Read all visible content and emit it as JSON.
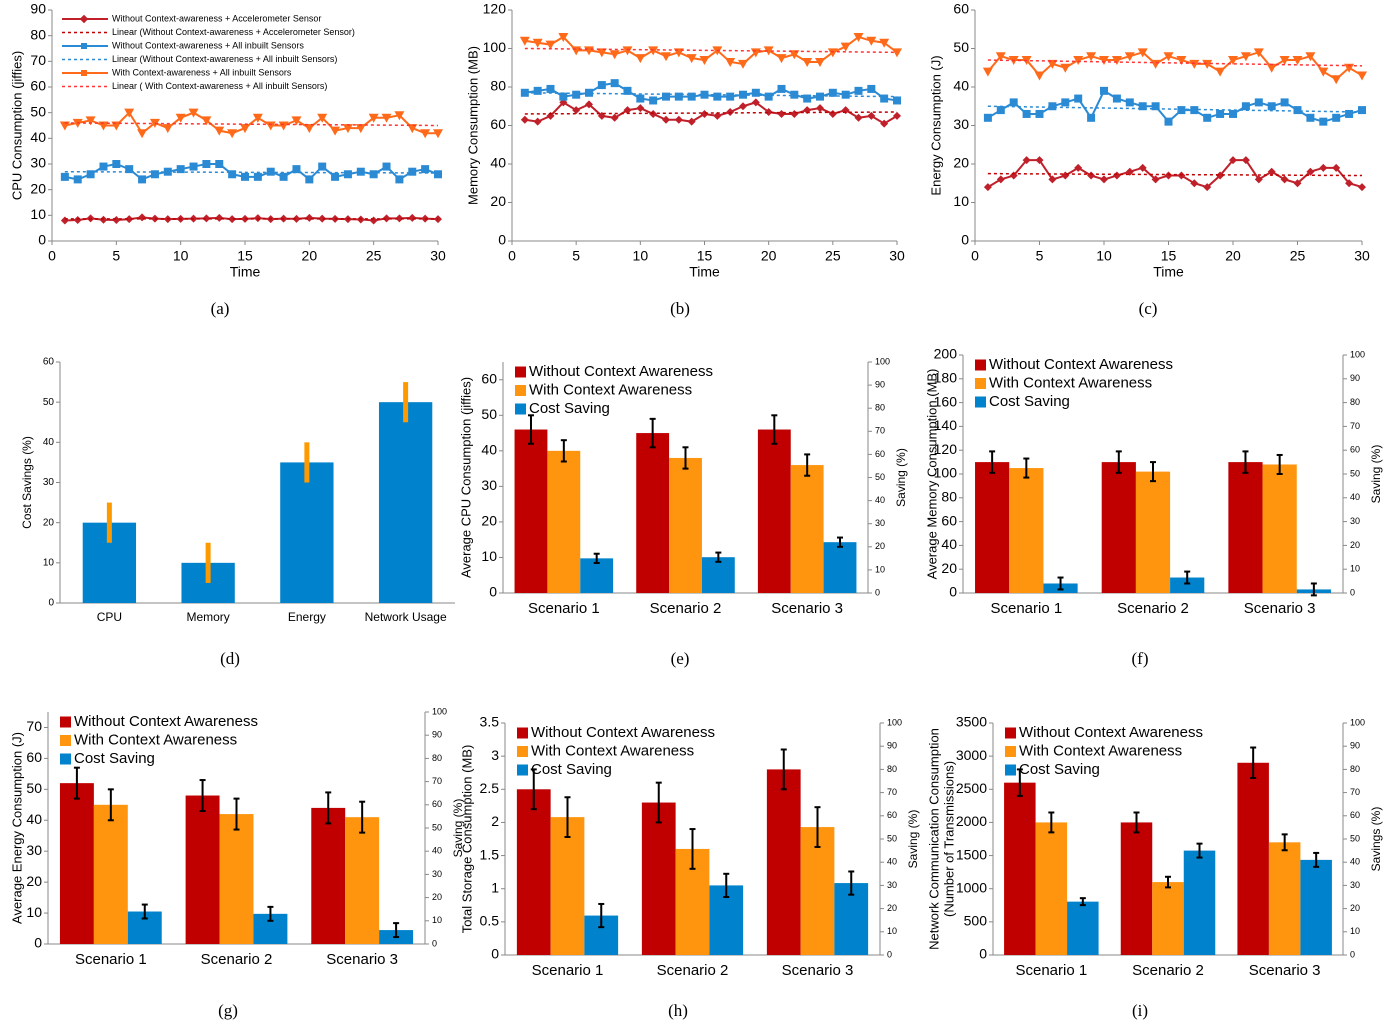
{
  "chart_data": [
    {
      "type": "line",
      "caption": "(a)",
      "ylabel": "CPU Consumption (jiffies)",
      "xlabel": "Time",
      "legend": true,
      "x": [
        1,
        2,
        3,
        4,
        5,
        6,
        7,
        8,
        9,
        10,
        11,
        12,
        13,
        14,
        15,
        16,
        17,
        18,
        19,
        20,
        21,
        22,
        23,
        24,
        25,
        26,
        27,
        28,
        29,
        30
      ],
      "xlim": [
        0,
        30
      ],
      "xticks": [
        0,
        5,
        10,
        15,
        20,
        25,
        30
      ],
      "ylim": [
        0,
        90
      ],
      "yticks": [
        0,
        10,
        20,
        30,
        40,
        50,
        60,
        70,
        80,
        90
      ],
      "series": [
        {
          "name": "Without Context-awareness + Accelerometer Sensor",
          "color": "#c0202a",
          "marker": "diamond",
          "values": [
            8,
            8.2,
            8.8,
            8.3,
            8.2,
            8.5,
            9.2,
            8.7,
            8.5,
            8.6,
            8.7,
            8.8,
            9,
            8.5,
            8.6,
            8.9,
            8.5,
            8.7,
            8.6,
            9,
            8.7,
            8.6,
            8.5,
            8.4,
            8,
            8.8,
            8.8,
            9,
            8.7,
            8.5
          ]
        },
        {
          "name": "Linear (Without Context-awareness + Accelerometer Sensor)",
          "color": "#c00000",
          "dash": true,
          "x": [
            1,
            30
          ],
          "values": [
            8.6,
            8.6
          ]
        },
        {
          "name": "Without Context-awareness + All inbuilt Sensors",
          "color": "#2a8ad4",
          "marker": "square",
          "values": [
            25,
            24,
            26,
            29,
            30,
            28,
            24,
            26,
            27,
            28,
            29,
            30,
            30,
            26,
            25,
            25,
            27,
            25,
            28,
            24,
            29,
            25,
            26,
            27,
            26,
            29,
            24,
            27,
            28,
            26
          ]
        },
        {
          "name": "Linear (Without Context-awareness + All inbuilt Sensors)",
          "color": "#2a8ad4",
          "dash": true,
          "x": [
            1,
            30
          ],
          "values": [
            27,
            26.5
          ]
        },
        {
          "name": " With Context-awareness + All inbuilt Sensors",
          "color": "#ff6a1a",
          "marker": "triangle",
          "values": [
            45,
            46,
            47,
            45,
            45,
            50,
            42,
            46,
            44,
            48,
            50,
            47,
            43,
            42,
            44,
            48,
            45,
            45,
            47,
            44,
            48,
            43,
            44,
            44,
            48,
            48,
            49,
            44,
            42,
            42
          ]
        },
        {
          "name": "Linear ( With Context-awareness + All inbuilt Sensors)",
          "color": "#ff3333",
          "dash": true,
          "x": [
            1,
            30
          ],
          "values": [
            46,
            45
          ]
        }
      ]
    },
    {
      "type": "line",
      "caption": "(b)",
      "ylabel": "Memory Consumption (MB)",
      "xlabel": "Time",
      "x": [
        1,
        2,
        3,
        4,
        5,
        6,
        7,
        8,
        9,
        10,
        11,
        12,
        13,
        14,
        15,
        16,
        17,
        18,
        19,
        20,
        21,
        22,
        23,
        24,
        25,
        26,
        27,
        28,
        29,
        30
      ],
      "xlim": [
        0,
        30
      ],
      "xticks": [
        0,
        5,
        10,
        15,
        20,
        25,
        30
      ],
      "ylim": [
        0,
        120
      ],
      "yticks": [
        0,
        20,
        40,
        60,
        80,
        100,
        120
      ],
      "series": [
        {
          "color": "#c0202a",
          "marker": "diamond",
          "values": [
            63,
            62,
            65,
            72,
            68,
            71,
            65,
            64,
            68,
            69,
            66,
            63,
            63,
            62,
            66,
            65,
            67,
            70,
            72,
            67,
            66,
            66,
            68,
            69,
            66,
            68,
            64,
            65,
            61,
            65
          ]
        },
        {
          "color": "#c00000",
          "dash": true,
          "x": [
            1,
            30
          ],
          "values": [
            66,
            67
          ]
        },
        {
          "color": "#2a8ad4",
          "marker": "square",
          "values": [
            77,
            78,
            79,
            75,
            76,
            77,
            81,
            82,
            78,
            74,
            73,
            75,
            75,
            75,
            76,
            75,
            75,
            76,
            77,
            75,
            79,
            76,
            74,
            75,
            77,
            76,
            78,
            79,
            74,
            73
          ]
        },
        {
          "color": "#2a8ad4",
          "dash": true,
          "x": [
            1,
            30
          ],
          "values": [
            77,
            75
          ]
        },
        {
          "color": "#ff6a1a",
          "marker": "triangle",
          "values": [
            104,
            103,
            102,
            106,
            99,
            99,
            98,
            97,
            99,
            95,
            99,
            96,
            98,
            95,
            94,
            99,
            93,
            92,
            98,
            99,
            95,
            97,
            93,
            93,
            98,
            101,
            106,
            104,
            103,
            98
          ]
        },
        {
          "color": "#ff3333",
          "dash": true,
          "x": [
            1,
            30
          ],
          "values": [
            100,
            98
          ]
        }
      ]
    },
    {
      "type": "line",
      "caption": "(c)",
      "ylabel": "Energy Consumption (J)",
      "xlabel": "Time",
      "x": [
        1,
        2,
        3,
        4,
        5,
        6,
        7,
        8,
        9,
        10,
        11,
        12,
        13,
        14,
        15,
        16,
        17,
        18,
        19,
        20,
        21,
        22,
        23,
        24,
        25,
        26,
        27,
        28,
        29,
        30
      ],
      "xlim": [
        0,
        30
      ],
      "xticks": [
        0,
        5,
        10,
        15,
        20,
        25,
        30
      ],
      "ylim": [
        0,
        60
      ],
      "yticks": [
        0,
        10,
        20,
        30,
        40,
        50,
        60
      ],
      "series": [
        {
          "color": "#c0202a",
          "marker": "diamond",
          "values": [
            14,
            16,
            17,
            21,
            21,
            16,
            17,
            19,
            17,
            16,
            17,
            18,
            19,
            16,
            17,
            17,
            15,
            14,
            17,
            21,
            21,
            16,
            18,
            16,
            15,
            18,
            19,
            19,
            15,
            14
          ]
        },
        {
          "color": "#c00000",
          "dash": true,
          "x": [
            1,
            30
          ],
          "values": [
            17.5,
            17
          ]
        },
        {
          "color": "#2a8ad4",
          "marker": "square",
          "values": [
            32,
            34,
            36,
            33,
            33,
            35,
            36,
            37,
            32,
            39,
            37,
            36,
            35,
            35,
            31,
            34,
            34,
            32,
            33,
            33,
            35,
            36,
            35,
            36,
            34,
            32,
            31,
            32,
            33,
            34
          ]
        },
        {
          "color": "#2a8ad4",
          "dash": true,
          "x": [
            1,
            30
          ],
          "values": [
            35,
            33.5
          ]
        },
        {
          "color": "#ff6a1a",
          "marker": "triangle",
          "values": [
            44,
            48,
            47,
            47,
            43,
            46,
            45,
            47,
            48,
            47,
            47,
            48,
            49,
            46,
            48,
            47,
            46,
            46,
            44,
            47,
            48,
            49,
            45,
            47,
            47,
            48,
            44,
            42,
            45,
            43
          ]
        },
        {
          "color": "#ff3333",
          "dash": true,
          "x": [
            1,
            30
          ],
          "values": [
            47,
            45.5
          ]
        }
      ]
    },
    {
      "type": "bar",
      "caption": "(d)",
      "ylabel": "Cost Savings (%)",
      "categories": [
        "CPU",
        "Memory",
        "Energy",
        "Network Usage"
      ],
      "values": [
        20,
        10,
        35,
        50
      ],
      "errors": [
        5,
        5,
        5,
        5
      ],
      "color": "#0082cc",
      "error_color": "#ff9900",
      "ylim": [
        0,
        60
      ],
      "yticks": [
        0,
        10,
        20,
        30,
        40,
        50,
        60
      ]
    },
    {
      "type": "grouped_bar",
      "caption": "(e)",
      "ylabel": "Average CPU Consumption  (jiffies)",
      "y2label": "Saving (%)",
      "categories": [
        "Scenario 1",
        "Scenario 2",
        "Scenario 3"
      ],
      "ylim": [
        0,
        65
      ],
      "yticks": [
        0,
        10,
        20,
        30,
        40,
        50,
        60
      ],
      "y2lim": [
        0,
        100
      ],
      "y2ticks": [
        0,
        10,
        20,
        30,
        40,
        50,
        60,
        70,
        80,
        90,
        100
      ],
      "series": [
        {
          "name": "Without Context Awareness",
          "color": "#c00000",
          "values": [
            46,
            45,
            46
          ],
          "errors": [
            4,
            4,
            4
          ]
        },
        {
          "name": "With Context Awareness",
          "color": "#ff950e",
          "values": [
            40,
            38,
            36
          ],
          "errors": [
            3,
            3,
            3
          ]
        },
        {
          "name": "Cost Saving",
          "color": "#0082cc",
          "axis": "y2",
          "values": [
            15,
            15.5,
            22
          ],
          "errors": [
            2,
            2,
            2
          ]
        }
      ]
    },
    {
      "type": "grouped_bar",
      "caption": "(f)",
      "ylabel": "Average Memory Consumption (MB)",
      "y2label": "Saving (%)",
      "categories": [
        "Scenario 1",
        "Scenario 2",
        "Scenario 3"
      ],
      "ylim": [
        0,
        200
      ],
      "yticks": [
        0,
        20,
        40,
        60,
        80,
        100,
        120,
        140,
        160,
        180,
        200
      ],
      "y2lim": [
        0,
        100
      ],
      "y2ticks": [
        0,
        10,
        20,
        30,
        40,
        50,
        60,
        70,
        80,
        90,
        100
      ],
      "series": [
        {
          "name": "Without Context Awareness",
          "color": "#c00000",
          "values": [
            110,
            110,
            110
          ],
          "errors": [
            9,
            9,
            9
          ]
        },
        {
          "name": "With Context Awareness",
          "color": "#ff950e",
          "values": [
            105,
            102,
            108
          ],
          "errors": [
            8,
            8,
            8
          ]
        },
        {
          "name": "Cost Saving",
          "color": "#0082cc",
          "axis": "y2",
          "values": [
            4,
            6.5,
            1.5
          ],
          "errors": [
            2.5,
            2.5,
            2.5
          ]
        }
      ]
    },
    {
      "type": "grouped_bar",
      "caption": "(g)",
      "ylabel": "Average Energy Consumption (J)",
      "y2label": "Saving (%)",
      "categories": [
        "Scenario 1",
        "Scenario 2",
        "Scenario 3"
      ],
      "ylim": [
        0,
        75
      ],
      "yticks": [
        0,
        10,
        20,
        30,
        40,
        50,
        60,
        70
      ],
      "y2lim": [
        0,
        100
      ],
      "y2ticks": [
        0,
        10,
        20,
        30,
        40,
        50,
        60,
        70,
        80,
        90,
        100
      ],
      "series": [
        {
          "name": "Without Context Awareness",
          "color": "#c00000",
          "values": [
            52,
            48,
            44
          ],
          "errors": [
            5,
            5,
            5
          ]
        },
        {
          "name": "With Context Awareness",
          "color": "#ff950e",
          "values": [
            45,
            42,
            41
          ],
          "errors": [
            5,
            5,
            5
          ]
        },
        {
          "name": "Cost Saving",
          "color": "#0082cc",
          "axis": "y2",
          "values": [
            14,
            13,
            6
          ],
          "errors": [
            3,
            3,
            3
          ]
        }
      ]
    },
    {
      "type": "grouped_bar",
      "caption": "(h)",
      "ylabel": "Total Storage Consumption (MB)",
      "y2label": "Saving (%)",
      "categories": [
        "Scenario 1",
        "Scenario 2",
        "Scenario 3"
      ],
      "ylim": [
        0,
        3.5
      ],
      "yticks": [
        0,
        0.5,
        1,
        1.5,
        2,
        2.5,
        3,
        3.5
      ],
      "y2lim": [
        0,
        100
      ],
      "y2ticks": [
        0,
        10,
        20,
        30,
        40,
        50,
        60,
        70,
        80,
        90,
        100
      ],
      "series": [
        {
          "name": "Without Context Awareness",
          "color": "#c00000",
          "values": [
            2.5,
            2.3,
            2.8
          ],
          "errors": [
            0.3,
            0.3,
            0.3
          ]
        },
        {
          "name": "With Context Awareness",
          "color": "#ff950e",
          "values": [
            2.08,
            1.6,
            1.93
          ],
          "errors": [
            0.3,
            0.3,
            0.3
          ]
        },
        {
          "name": "Cost Saving",
          "color": "#0082cc",
          "axis": "y2",
          "values": [
            17,
            30,
            31
          ],
          "errors": [
            5,
            5,
            5
          ]
        }
      ]
    },
    {
      "type": "grouped_bar",
      "caption": "(i)",
      "ylabel": [
        "Network Communication Consumption",
        "(Number of Transmissions)"
      ],
      "y2label": "Savings (%)",
      "categories": [
        "Scenario 1",
        "Scenario 2",
        "Scenario 3"
      ],
      "ylim": [
        0,
        3500
      ],
      "yticks": [
        0,
        500,
        1000,
        1500,
        2000,
        2500,
        3000,
        3500
      ],
      "y2lim": [
        0,
        100
      ],
      "y2ticks": [
        0,
        10,
        20,
        30,
        40,
        50,
        60,
        70,
        80,
        90,
        100
      ],
      "series": [
        {
          "name": "Without Context Awareness",
          "color": "#c00000",
          "values": [
            2600,
            2000,
            2900
          ],
          "errors": [
            200,
            150,
            230
          ]
        },
        {
          "name": "With Context Awareness",
          "color": "#ff950e",
          "values": [
            2000,
            1100,
            1700
          ],
          "errors": [
            150,
            80,
            120
          ]
        },
        {
          "name": "Cost Saving",
          "color": "#0082cc",
          "axis": "y2",
          "values": [
            23,
            45,
            41
          ],
          "errors": [
            1.5,
            3,
            3
          ]
        }
      ]
    }
  ]
}
